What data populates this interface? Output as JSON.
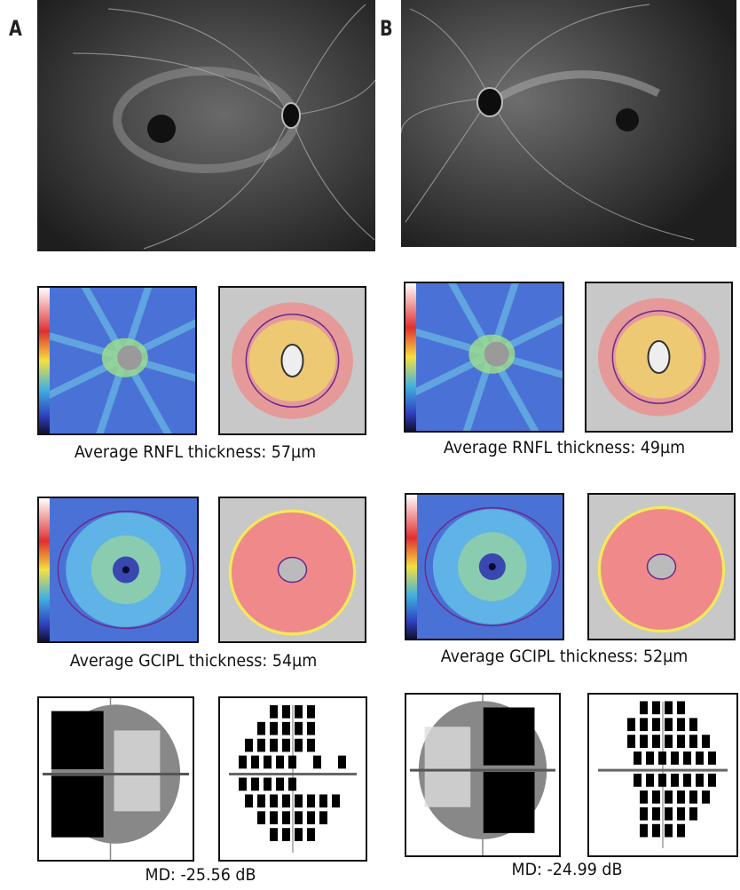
{
  "panels": [
    {
      "label": "A",
      "rnfl_caption": "Average RNFL thickness: 57µm",
      "gcipl_caption": "Average GCIPL thickness: 54µm",
      "vf_caption": "MD: -25.56 dB"
    },
    {
      "label": "B",
      "rnfl_caption": "Average RNFL thickness: 49µm",
      "gcipl_caption": "Average GCIPL thickness: 52µm",
      "vf_caption": "MD: -24.99 dB"
    }
  ],
  "colors": {
    "thickness_map_blue": "#4a72d6",
    "deviation_red": "#f08a8a",
    "deviation_yellow": "#f2ea5a",
    "ring_purple": "#6a2a8a"
  }
}
